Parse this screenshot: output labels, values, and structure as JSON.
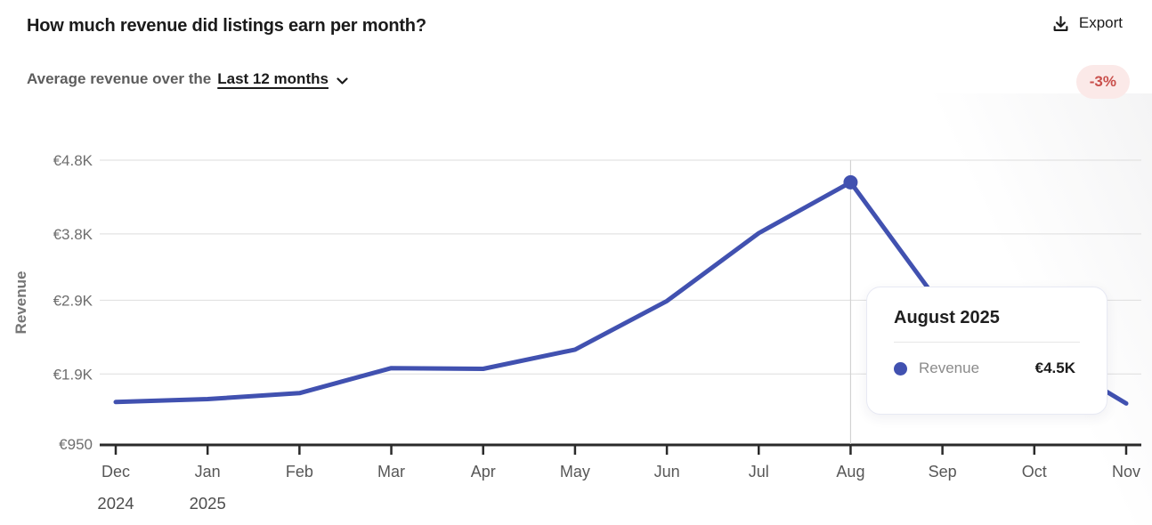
{
  "header": {
    "title": "How much revenue did listings earn per month?",
    "export_label": "Export"
  },
  "subtitle": {
    "prefix": "Average revenue over the",
    "range_label": "Last 12 months",
    "delta_badge": "-3%",
    "delta_text_color": "#c94f4b",
    "delta_bg_color": "#fbe9e8"
  },
  "tooltip": {
    "title": "August 2025",
    "series_label": "Revenue",
    "value_label": "€4.5K",
    "dot_color": "#4151b0"
  },
  "chart_data": {
    "type": "line",
    "title": "How much revenue did listings earn per month?",
    "xlabel": "",
    "ylabel": "Revenue",
    "categories": [
      "Dec",
      "Jan",
      "Feb",
      "Mar",
      "Apr",
      "May",
      "Jun",
      "Jul",
      "Aug",
      "Sep",
      "Oct",
      "Nov"
    ],
    "category_sublabels": [
      "2024",
      "2025",
      "",
      "",
      "",
      "",
      "",
      "",
      "",
      "",
      "",
      ""
    ],
    "series": [
      {
        "name": "Revenue",
        "values": [
          1520,
          1560,
          1640,
          1980,
          1970,
          2230,
          2890,
          3810,
          4500,
          2800,
          2250,
          1500
        ]
      }
    ],
    "y_ticks": [
      {
        "label": "€950",
        "value": 950
      },
      {
        "label": "€1.9K",
        "value": 1900
      },
      {
        "label": "€2.9K",
        "value": 2900
      },
      {
        "label": "€3.8K",
        "value": 3800
      },
      {
        "label": "€4.8K",
        "value": 4800
      }
    ],
    "ylim": [
      950,
      4800
    ],
    "grid": true,
    "legend": "none",
    "highlight_index": 8,
    "highlight_month": "August 2025",
    "highlight_value_label": "€4.5K",
    "line_color": "#4151b0",
    "grid_color": "#dedede",
    "axis_color": "#2a2a2a"
  }
}
